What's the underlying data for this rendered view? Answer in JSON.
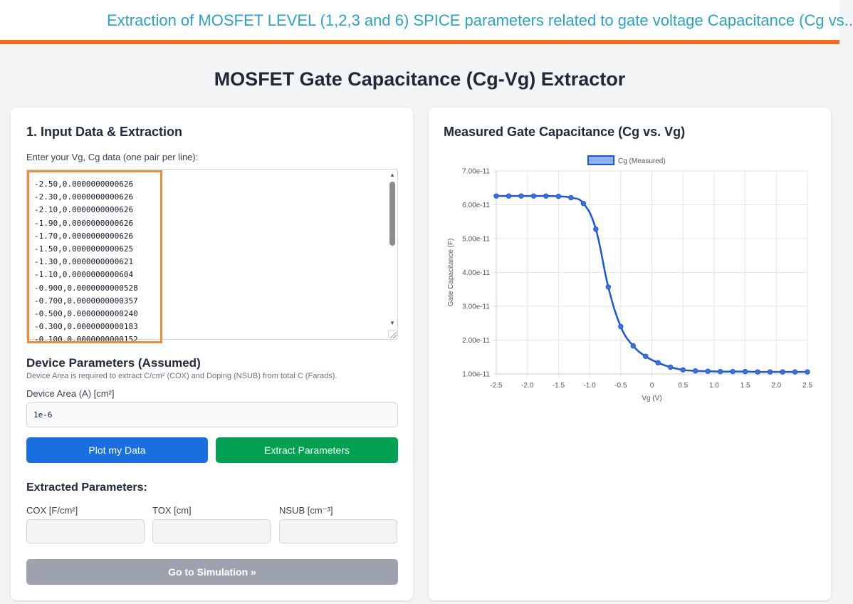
{
  "banner": {
    "text": "Extraction of MOSFET LEVEL (1,2,3 and 6) SPICE parameters related to gate voltage Capacitance (Cg vs.."
  },
  "page": {
    "title": "MOSFET Gate Capacitance (Cg-Vg) Extractor"
  },
  "input_card": {
    "title": "1. Input Data & Extraction",
    "data_label": "Enter your Vg, Cg data (one pair per line):",
    "data_lines": [
      "-2.50,0.0000000000626",
      "-2.30,0.0000000000626",
      "-2.10,0.0000000000626",
      "-1.90,0.0000000000626",
      "-1.70,0.0000000000626",
      "-1.50,0.0000000000625",
      "-1.30,0.0000000000621",
      "-1.10,0.0000000000604",
      "-0.900,0.0000000000528",
      "-0.700,0.0000000000357",
      "-0.500,0.0000000000240",
      "-0.300,0.0000000000183",
      "-0.100,0.0000000000152"
    ],
    "device_title": "Device Parameters (Assumed)",
    "device_note": "Device Area is required to extract C/cm² (COX) and Doping (NSUB) from total C (Farads).",
    "area_label": "Device Area (A) [cm²]",
    "area_value": "1e-6",
    "plot_button": "Plot my Data",
    "extract_button": "Extract Parameters",
    "extracted_title": "Extracted Parameters:",
    "cox_label": "COX [F/cm²]",
    "tox_label": "TOX [cm]",
    "nsub_label": "NSUB [cm⁻³]",
    "cox_value": "",
    "tox_value": "",
    "nsub_value": "",
    "simulation_button": "Go to Simulation »"
  },
  "chart_card": {
    "title": "Measured Gate Capacitance (Cg vs. Vg)"
  },
  "colors": {
    "line": "#1a56d6",
    "legend_fill": "#8fb3f0",
    "grid": "#e5e5e5"
  },
  "chart_data": {
    "type": "line",
    "title": "",
    "xlabel": "Vg (V)",
    "ylabel": "Gate Capacitance (F)",
    "xlim": [
      -2.5,
      2.5
    ],
    "ylim": [
      1e-11,
      7e-11
    ],
    "x_ticks": [
      "-2.5",
      "-2.0",
      "-1.5",
      "-1.0",
      "-0.5",
      "0",
      "0.5",
      "1.0",
      "1.5",
      "2.0",
      "2.5"
    ],
    "y_ticks": [
      "7.00e-11",
      "6.00e-11",
      "5.00e-11",
      "4.00e-11",
      "3.00e-11",
      "2.00e-11",
      "1.00e-11"
    ],
    "grid": true,
    "legend_position": "top",
    "series": [
      {
        "name": "Cg (Measured)",
        "x": [
          -2.5,
          -2.3,
          -2.1,
          -1.9,
          -1.7,
          -1.5,
          -1.3,
          -1.1,
          -0.9,
          -0.7,
          -0.5,
          -0.3,
          -0.1,
          0.1,
          0.3,
          0.5,
          0.7,
          0.9,
          1.1,
          1.3,
          1.5,
          1.7,
          1.9,
          2.1,
          2.3,
          2.5
        ],
        "y": [
          6.26e-11,
          6.26e-11,
          6.26e-11,
          6.26e-11,
          6.26e-11,
          6.25e-11,
          6.21e-11,
          6.04e-11,
          5.28e-11,
          3.57e-11,
          2.4e-11,
          1.83e-11,
          1.52e-11,
          1.33e-11,
          1.2e-11,
          1.12e-11,
          1.09e-11,
          1.08e-11,
          1.07e-11,
          1.07e-11,
          1.07e-11,
          1.06e-11,
          1.06e-11,
          1.06e-11,
          1.06e-11,
          1.06e-11
        ]
      }
    ]
  }
}
